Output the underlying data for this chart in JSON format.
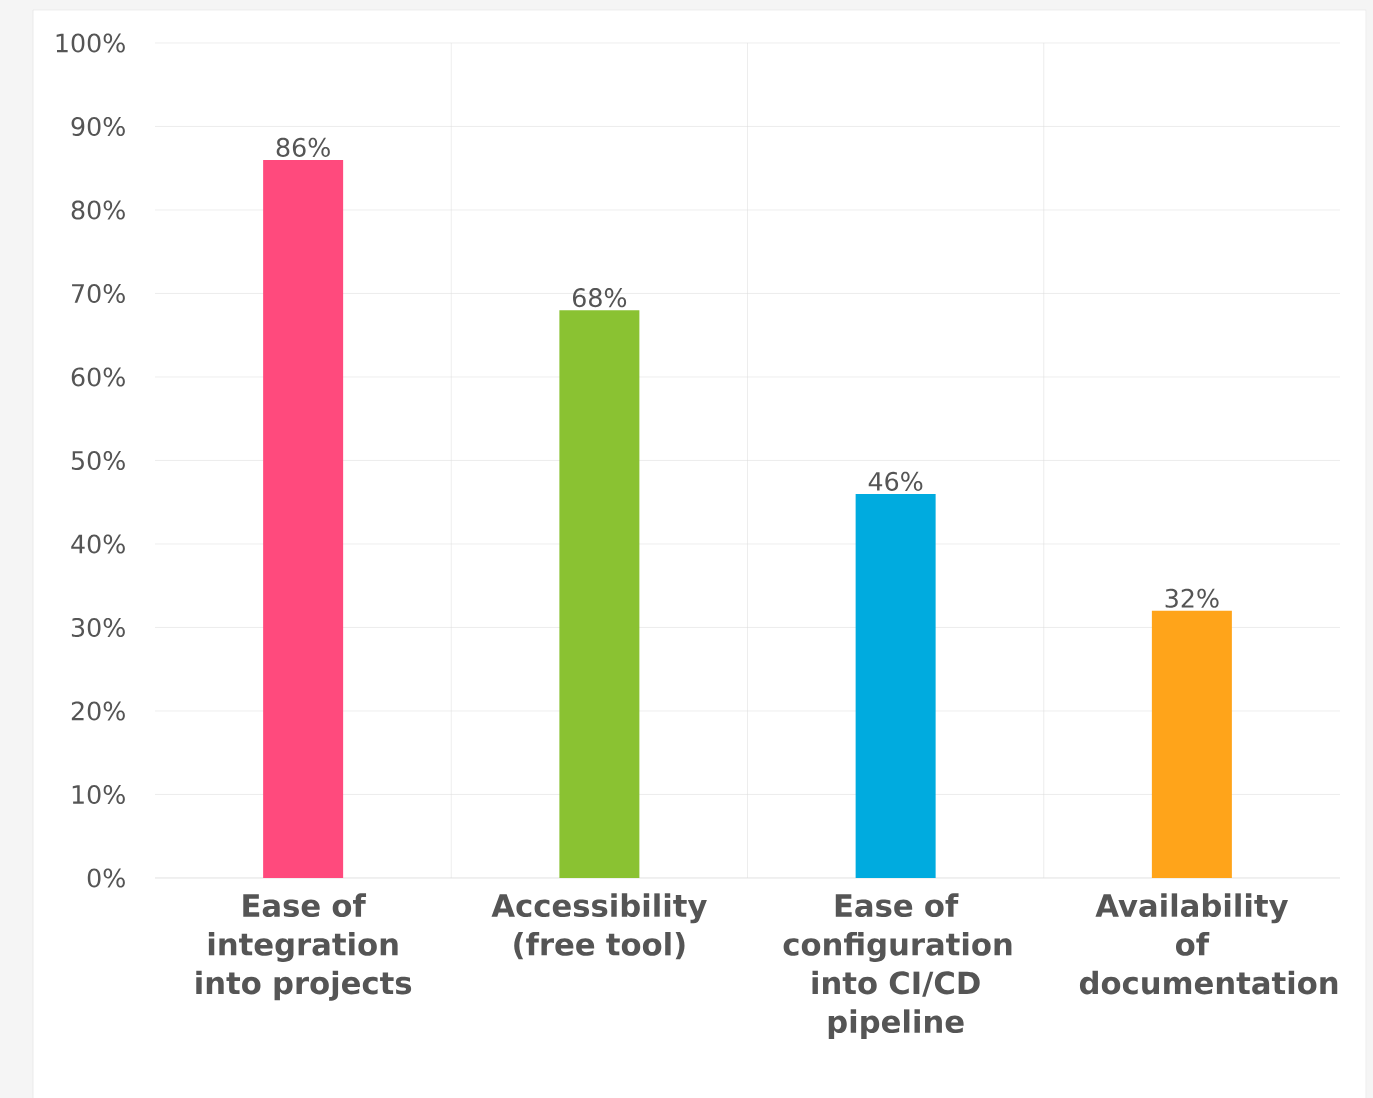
{
  "chart_data": {
    "type": "bar",
    "categories": [
      "Ease of integration into projects",
      "Accessibility (free tool)",
      "Ease of configuration into CI/CD pipeline",
      "Availability of documentation"
    ],
    "values": [
      86,
      68,
      46,
      32
    ],
    "colors": [
      "#ff4a7d",
      "#8ac232",
      "#00abdf",
      "#ffa41a"
    ],
    "value_labels": [
      "86%",
      "68%",
      "46%",
      "32%"
    ],
    "ylim": [
      0,
      100
    ],
    "yticks": [
      {
        "value": 0,
        "label": "0%"
      },
      {
        "value": 10,
        "label": "10%"
      },
      {
        "value": 20,
        "label": "20%"
      },
      {
        "value": 30,
        "label": "30%"
      },
      {
        "value": 40,
        "label": "40%"
      },
      {
        "value": 50,
        "label": "50%"
      },
      {
        "value": 60,
        "label": "60%"
      },
      {
        "value": 70,
        "label": "70%"
      },
      {
        "value": 80,
        "label": "80%"
      },
      {
        "value": 90,
        "label": "90%"
      },
      {
        "value": 100,
        "label": "100%"
      }
    ],
    "grid": true
  }
}
